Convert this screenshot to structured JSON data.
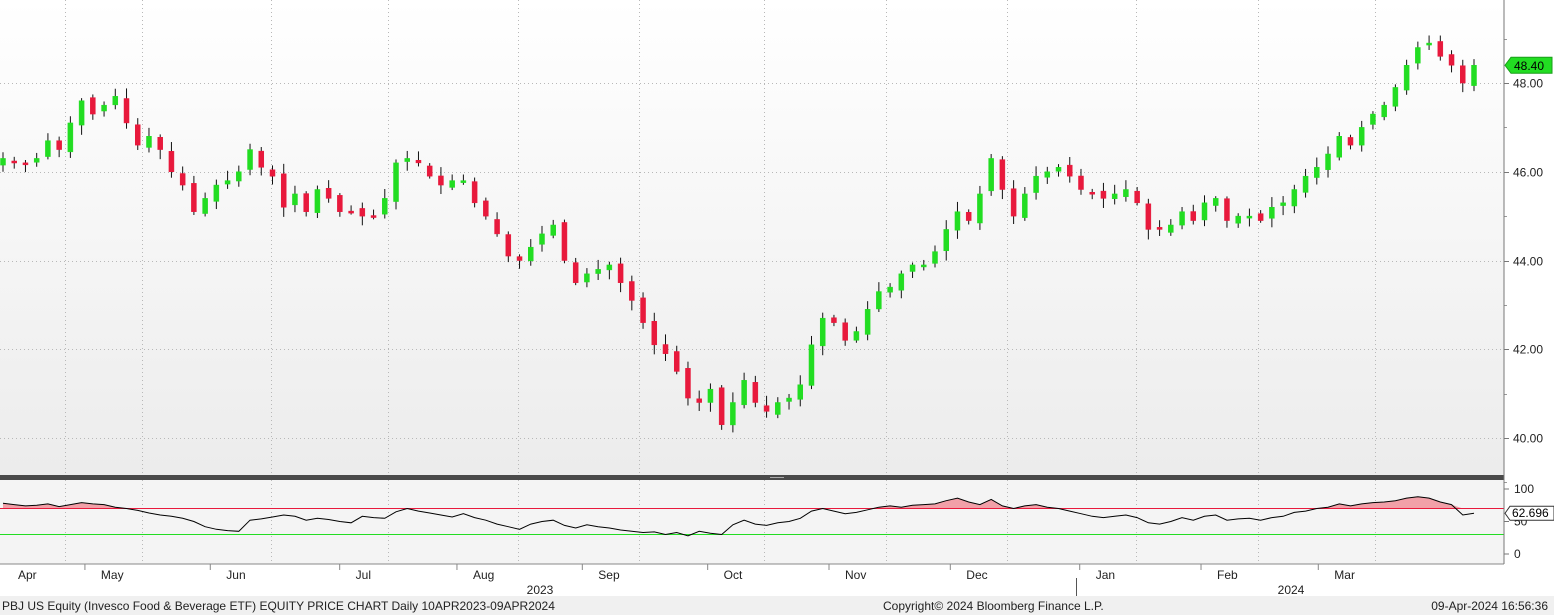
{
  "footer": {
    "left": "PBJ US Equity (Invesco Food & Beverage ETF) EQUITY PRICE CHART  Daily 10APR2023-09APR2024",
    "center": "Copyright© 2024 Bloomberg Finance L.P.",
    "right": "09-Apr-2024 16:56:36"
  },
  "colors": {
    "up": "#22dd22",
    "down": "#e8193c",
    "last_price_tag": "#22dd22",
    "rsi_line": "#000000",
    "rsi_upper": "#e8193c",
    "rsi_lower": "#22dd22",
    "rsi_fill": "#f2a0a8"
  },
  "chart_data": [
    {
      "type": "candlestick",
      "title": "",
      "x_start": "2023-04-10",
      "x_end": "2024-04-09",
      "x_labels": [
        "Apr",
        "May",
        "Jun",
        "Jul",
        "Aug",
        "Sep",
        "Oct",
        "Nov",
        "Dec",
        "Jan",
        "Feb",
        "Mar"
      ],
      "year_labels": [
        "2023",
        "2024"
      ],
      "y_ticks": [
        "40.00",
        "42.00",
        "44.00",
        "46.00",
        "48.00"
      ],
      "ylim": [
        39.3,
        50.3
      ],
      "grid": true,
      "last_price": "48.40",
      "closes": [
        46.3,
        46.2,
        46.2,
        46.3,
        46.7,
        46.5,
        47.1,
        47.6,
        47.3,
        47.5,
        47.7,
        47.1,
        46.6,
        46.8,
        46.5,
        46.0,
        45.7,
        45.1,
        45.4,
        45.7,
        45.8,
        46.0,
        46.5,
        46.1,
        45.9,
        45.2,
        45.5,
        45.1,
        45.6,
        45.4,
        45.1,
        45.1,
        45.0,
        45.0,
        45.4,
        46.2,
        46.3,
        46.2,
        45.9,
        45.7,
        45.8,
        45.8,
        45.3,
        45.0,
        44.6,
        44.1,
        44.0,
        44.3,
        44.6,
        44.8,
        44.0,
        43.5,
        43.7,
        43.8,
        43.9,
        43.5,
        43.1,
        42.6,
        42.1,
        41.9,
        41.5,
        40.9,
        40.8,
        41.1,
        40.3,
        40.8,
        41.3,
        40.8,
        40.6,
        40.8,
        40.9,
        41.2,
        42.1,
        42.7,
        42.6,
        42.2,
        42.4,
        42.9,
        43.3,
        43.4,
        43.7,
        43.9,
        43.9,
        44.2,
        44.7,
        45.1,
        44.9,
        45.5,
        46.3,
        45.6,
        45.0,
        45.5,
        45.9,
        46.0,
        46.1,
        45.9,
        45.6,
        45.5,
        45.4,
        45.5,
        45.6,
        45.3,
        44.7,
        44.7,
        44.8,
        45.1,
        44.9,
        45.3,
        45.4,
        44.9,
        45.0,
        45.0,
        44.9,
        45.2,
        45.3,
        45.6,
        45.9,
        46.1,
        46.4,
        46.8,
        46.6,
        47.0,
        47.3,
        47.5,
        47.9,
        48.4,
        48.8,
        48.9,
        48.6,
        48.4,
        48.0,
        48.4
      ]
    },
    {
      "type": "line",
      "title": "",
      "series": [
        {
          "name": "",
          "values": [
            78,
            76,
            74,
            75,
            77,
            73,
            76,
            79,
            77,
            76,
            72,
            70,
            67,
            63,
            60,
            58,
            55,
            50,
            42,
            38,
            36,
            35,
            52,
            54,
            57,
            60,
            58,
            52,
            55,
            53,
            50,
            48,
            58,
            56,
            55,
            65,
            70,
            66,
            63,
            60,
            57,
            62,
            56,
            52,
            46,
            42,
            38,
            46,
            50,
            52,
            44,
            40,
            45,
            42,
            40,
            37,
            35,
            33,
            34,
            30,
            33,
            28,
            35,
            32,
            30,
            45,
            52,
            46,
            44,
            48,
            50,
            55,
            66,
            70,
            66,
            62,
            64,
            68,
            72,
            74,
            72,
            75,
            76,
            77,
            82,
            86,
            80,
            76,
            84,
            74,
            70,
            74,
            76,
            72,
            70,
            66,
            62,
            58,
            56,
            58,
            60,
            56,
            48,
            46,
            50,
            56,
            52,
            58,
            60,
            52,
            54,
            55,
            52,
            56,
            58,
            64,
            66,
            70,
            72,
            77,
            74,
            77,
            79,
            80,
            82,
            86,
            88,
            86,
            80,
            76,
            60,
            62.7
          ]
        }
      ],
      "y_ticks": [
        "0",
        "50",
        "100"
      ],
      "ylim": [
        -10,
        110
      ],
      "upper_band": 70,
      "lower_band": 30,
      "last_value": "62.696"
    }
  ]
}
